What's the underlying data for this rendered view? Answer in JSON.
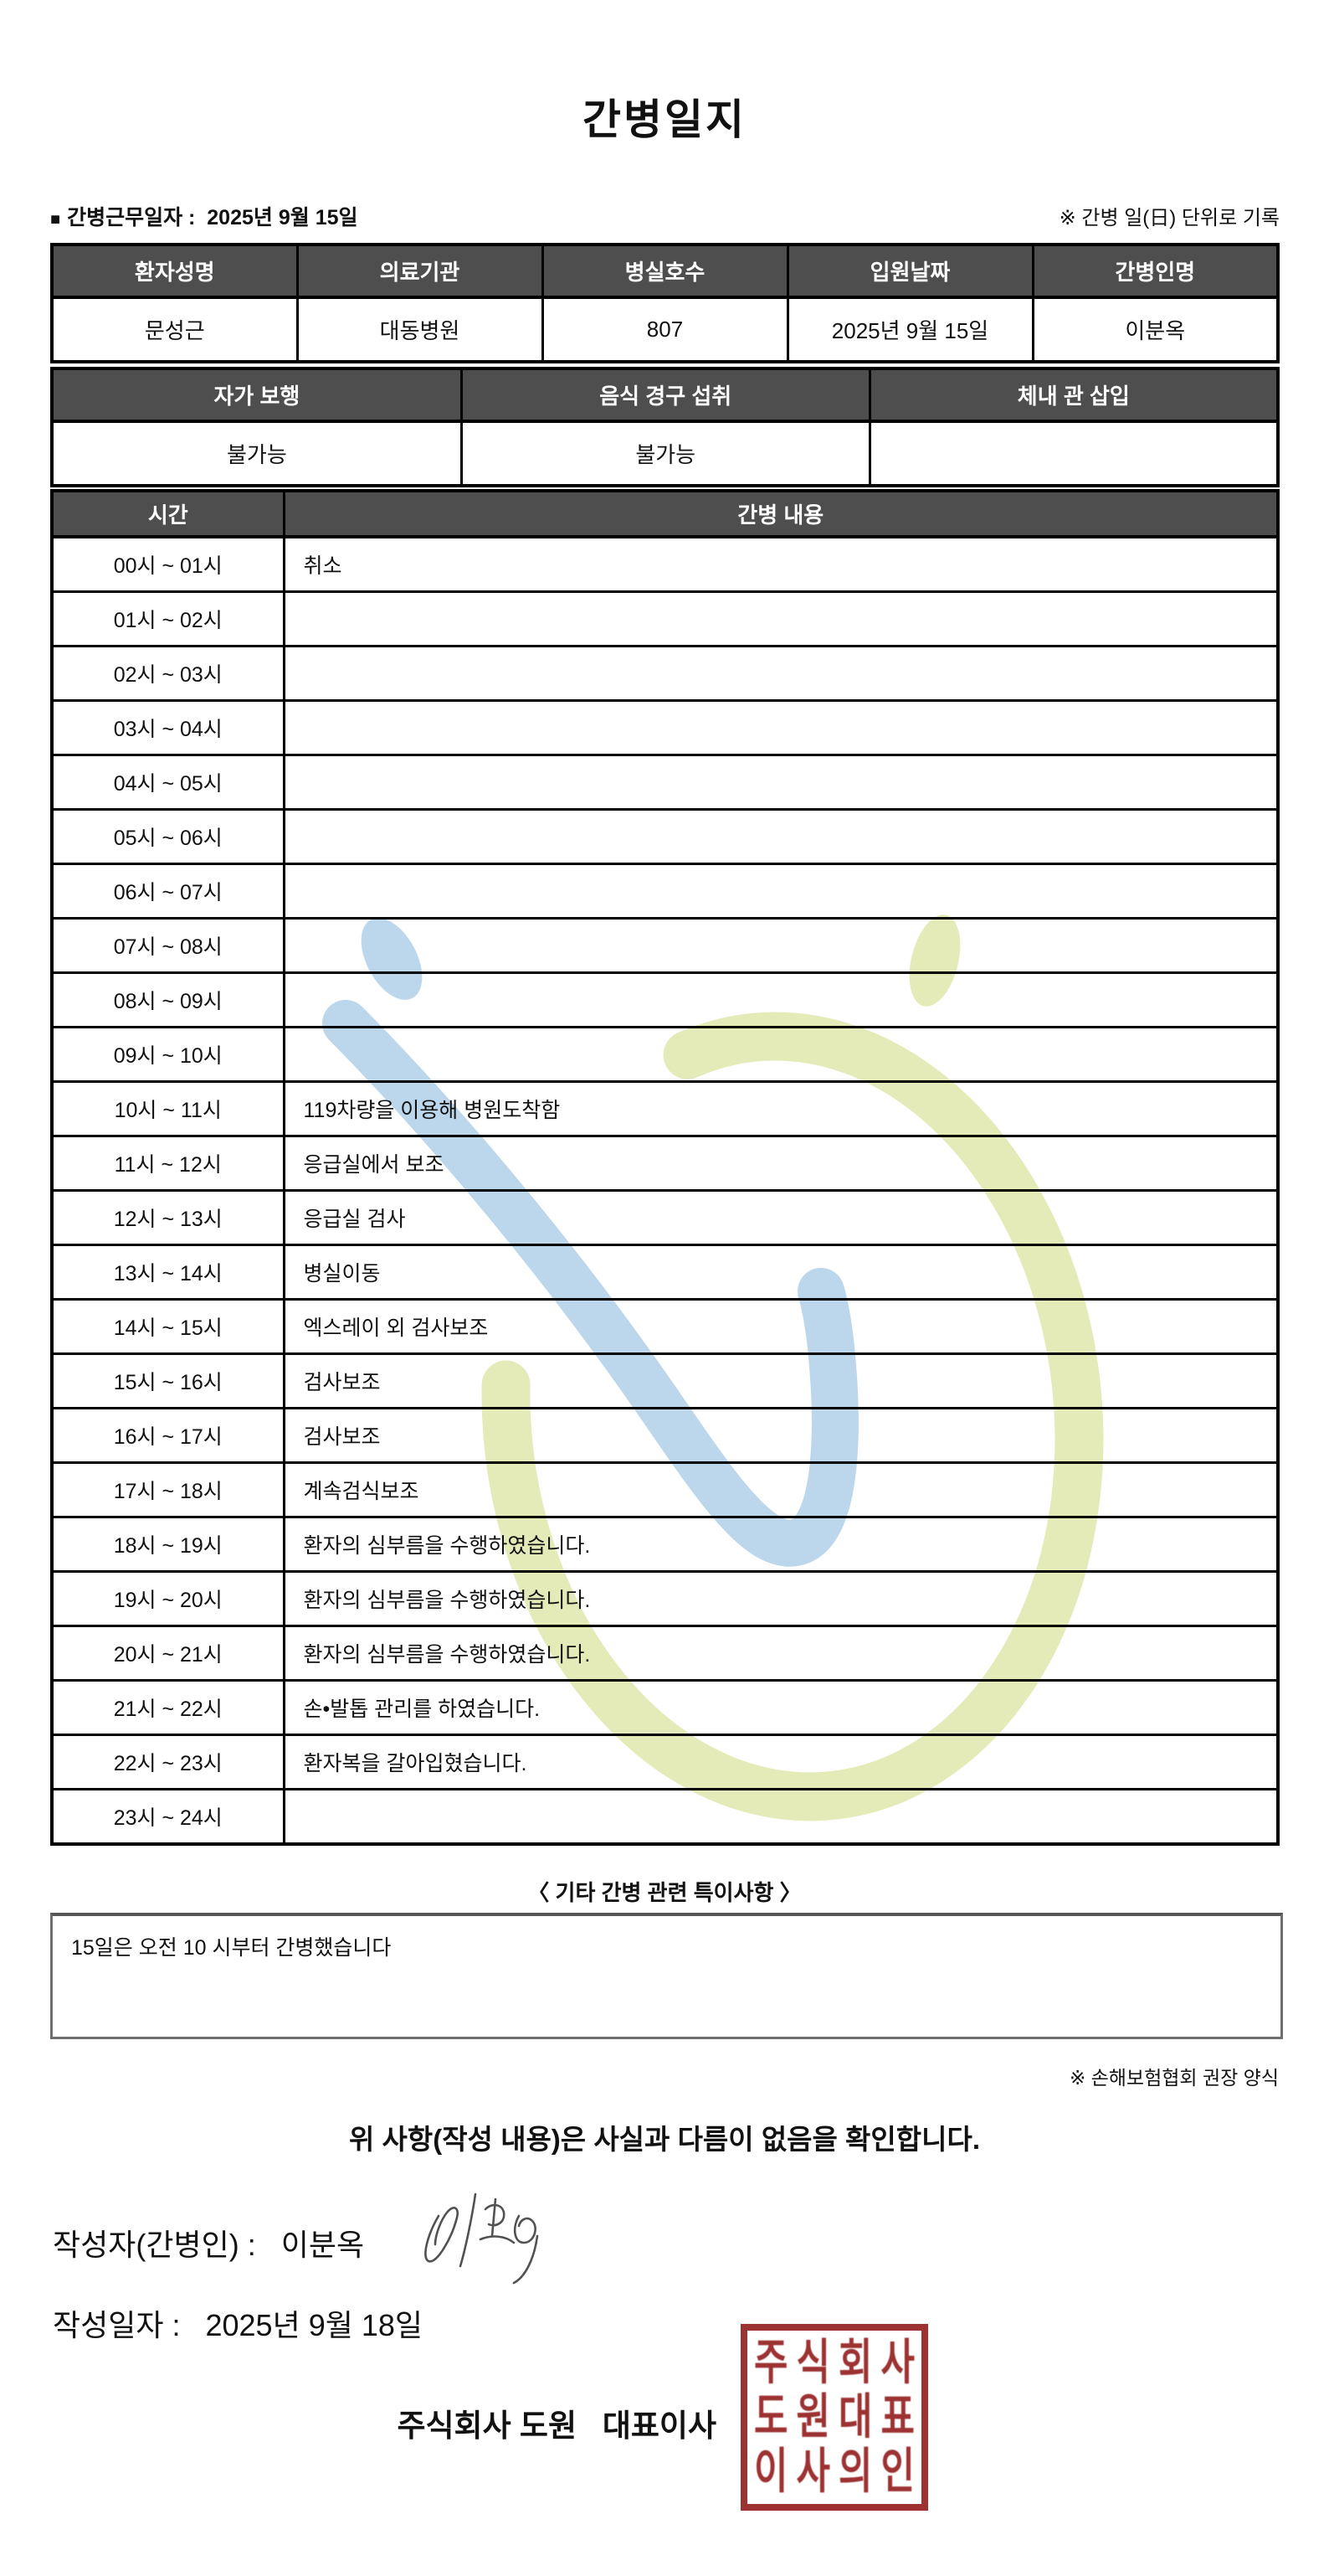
{
  "title": "간병일지",
  "meta": {
    "work_date_label": "간병근무일자  :",
    "work_date": "2025년 9월 15일",
    "unit_note": "※ 간병 일(日) 단위로 기록"
  },
  "patient_table": {
    "headers": [
      "환자성명",
      "의료기관",
      "병실호수",
      "입원날짜",
      "간병인명"
    ],
    "values": [
      "문성근",
      "대동병원",
      "807",
      "2025년 9월 15일",
      "이분옥"
    ]
  },
  "status_table": {
    "headers": [
      "자가 보행",
      "음식 경구 섭취",
      "체내 관 삽입"
    ],
    "values": [
      "불가능",
      "불가능",
      ""
    ]
  },
  "care_log": {
    "time_header": "시간",
    "content_header": "간병 내용",
    "rows": [
      {
        "time": "00시 ~ 01시",
        "content": "취소"
      },
      {
        "time": "01시 ~ 02시",
        "content": ""
      },
      {
        "time": "02시 ~ 03시",
        "content": ""
      },
      {
        "time": "03시 ~ 04시",
        "content": ""
      },
      {
        "time": "04시 ~ 05시",
        "content": ""
      },
      {
        "time": "05시 ~ 06시",
        "content": ""
      },
      {
        "time": "06시 ~ 07시",
        "content": ""
      },
      {
        "time": "07시 ~ 08시",
        "content": ""
      },
      {
        "time": "08시 ~ 09시",
        "content": ""
      },
      {
        "time": "09시 ~ 10시",
        "content": ""
      },
      {
        "time": "10시 ~ 11시",
        "content": "119차량을 이용해 병원도착함"
      },
      {
        "time": "11시 ~ 12시",
        "content": "응급실에서 보조"
      },
      {
        "time": "12시 ~ 13시",
        "content": "응급실 검사"
      },
      {
        "time": "13시 ~ 14시",
        "content": "병실이동"
      },
      {
        "time": "14시 ~ 15시",
        "content": "엑스레이 외 검사보조"
      },
      {
        "time": "15시 ~ 16시",
        "content": "검사보조"
      },
      {
        "time": "16시 ~ 17시",
        "content": "검사보조"
      },
      {
        "time": "17시 ~ 18시",
        "content": "계속검식보조"
      },
      {
        "time": "18시 ~ 19시",
        "content": "환자의 심부름을 수행하였습니다."
      },
      {
        "time": "19시 ~ 20시",
        "content": "환자의 심부름을 수행하였습니다."
      },
      {
        "time": "20시 ~ 21시",
        "content": "환자의 심부름을 수행하였습니다."
      },
      {
        "time": "21시 ~ 22시",
        "content": "손•발톱 관리를 하였습니다."
      },
      {
        "time": "22시 ~ 23시",
        "content": "환자복을 갈아입혔습니다."
      },
      {
        "time": "23시 ~ 24시",
        "content": ""
      }
    ]
  },
  "notes": {
    "heading": "〈 기타 간병 관련 특이사항 〉",
    "content": "15일은 오전 10 시부터 간병했습니다"
  },
  "footer": {
    "form_note": "※ 손해보험협회 권장 양식",
    "confirmation": "위 사항(작성 내용)은 사실과 다름이 없음을 확인합니다.",
    "writer_line": "작성자(간병인) :   이분옥",
    "date_line": "작성일자 :   2025년 9월 18일",
    "company_line": "주식회사 도원   대표이사",
    "stamp_lines": [
      "주식회사",
      "도원대표",
      "이사의인"
    ]
  },
  "colors": {
    "header_bg": "#4e4e4e",
    "border_black": "#000000",
    "stamp_red": "#9d3233",
    "watermark_blue": "#b7d3ea",
    "watermark_green": "#e2eab3"
  }
}
